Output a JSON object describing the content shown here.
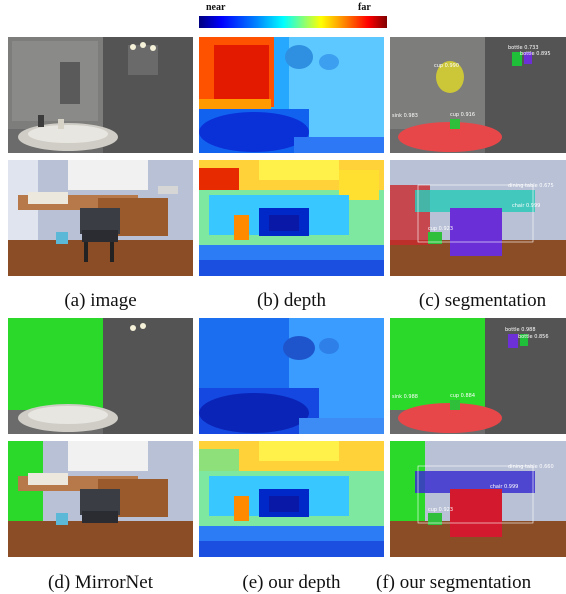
{
  "colorbar": {
    "near_label": "near",
    "far_label": "far"
  },
  "captions": {
    "image": "(a) image",
    "depth": "(b) depth",
    "segmentation": "(c) segmentation",
    "mirrornet": "(d) MirrorNet",
    "our_depth": "(e) our depth",
    "our_segmentation": "(f) our segmentation"
  },
  "segmentation_labels": {
    "bathroom_top": [
      "bottle 0.733",
      "bottle 0.895",
      "cup 0.990"
    ],
    "bathroom_sink": [
      "sink 0.983",
      "cup 0.916"
    ],
    "bedroom_top": [
      "dining table 0.675",
      "chair 0.999"
    ],
    "bedroom_low": [
      "cup 0.923"
    ]
  },
  "our_segmentation_labels": {
    "bathroom_top": [
      "bottle 0.988",
      "bottle 0.856"
    ],
    "bathroom_sink": [
      "sink 0.988",
      "cup 0.884"
    ],
    "bedroom_top": [
      "dining table 0.660",
      "chair 0.999"
    ],
    "bedroom_low": [
      "cup 0.923"
    ]
  },
  "colors": {
    "mirror_overlay": "#2bd92b",
    "sink_overlay": "#e8474a",
    "chair_overlay": "#6a2fd6",
    "chair_red": "#d3192d",
    "table_overlay": "#2ec9b8",
    "table_blue": "#3b2fd0"
  }
}
